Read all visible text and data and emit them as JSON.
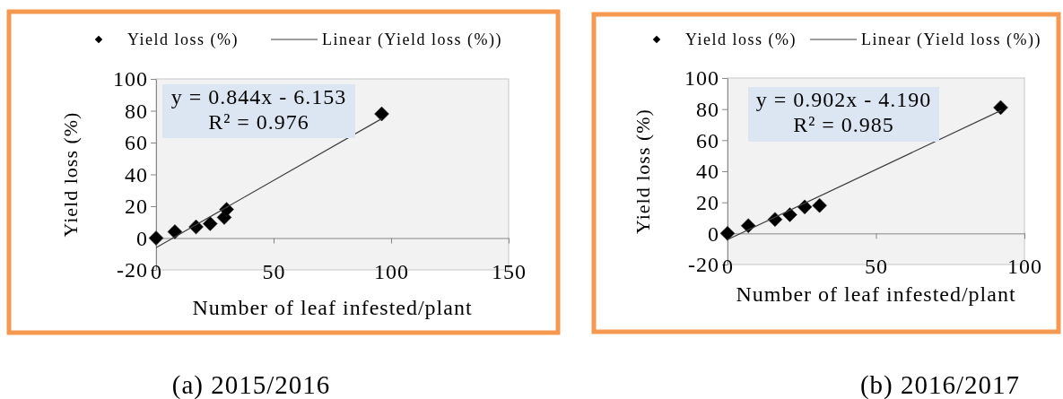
{
  "chart_data": [
    {
      "type": "scatter",
      "title": "(a) 2015/2016",
      "xlabel": "Number of leaf infested/plant",
      "ylabel": "Yield loss (%)",
      "annotations": [
        "y = 0.844x - 6.153",
        "R² = 0.976"
      ],
      "line_style": "solid",
      "legend": "top",
      "xlim": [
        0,
        150
      ],
      "xticks": [
        0,
        50,
        100,
        150
      ],
      "ylim": [
        -20,
        100
      ],
      "yticks": [
        -20,
        0,
        20,
        40,
        60,
        80,
        100
      ],
      "series": [
        {
          "name": "Yield loss (%)",
          "type": "scatter",
          "marker": "diamond",
          "color": "#000000",
          "x": [
            0,
            8,
            17,
            23,
            29,
            30,
            96
          ],
          "values": [
            0,
            4,
            7,
            9,
            13,
            18,
            78
          ]
        },
        {
          "name": "Linear (Yield loss (%))",
          "type": "line",
          "marker": "none",
          "color": "#404040",
          "x": [
            0,
            96
          ],
          "values": [
            -6,
            75
          ]
        }
      ]
    },
    {
      "type": "scatter",
      "title": "(b) 2016/2017",
      "xlabel": "Number of leaf infested/plant",
      "ylabel": "Yield loss (%)",
      "annotations": [
        "y = 0.902x - 4.190",
        "R² = 0.985"
      ],
      "line_style": "solid",
      "legend": "top",
      "xlim": [
        0,
        100
      ],
      "xticks": [
        0,
        50,
        100
      ],
      "ylim": [
        -20,
        100
      ],
      "yticks": [
        -20,
        0,
        20,
        40,
        60,
        80,
        100
      ],
      "series": [
        {
          "name": "Yield loss (%)",
          "type": "scatter",
          "marker": "diamond",
          "color": "#000000",
          "x": [
            0,
            7,
            16,
            21,
            26,
            31,
            92
          ],
          "values": [
            0,
            5,
            9,
            12,
            17,
            18,
            81
          ]
        },
        {
          "name": "Linear (Yield loss (%))",
          "type": "line",
          "marker": "none",
          "color": "#404040",
          "x": [
            0,
            92
          ],
          "values": [
            -4,
            79
          ]
        }
      ]
    }
  ]
}
